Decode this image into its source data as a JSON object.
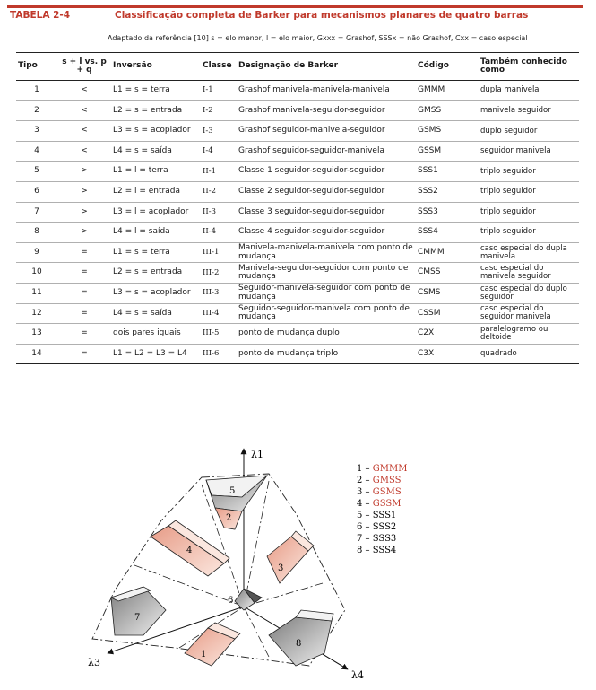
{
  "table": {
    "number": "TABELA 2-4",
    "title": "Classificação completa de Barker para mecanismos planares de quatro barras",
    "subtitle": "Adaptado da referência [10] s = elo menor, l = elo maior, Gxxx = Grashof, SSSx = não Grashof, Cxx = caso especial",
    "headers": [
      "Tipo",
      "s + l vs. p + q",
      "Inversão",
      "Classe",
      "Designação de Barker",
      "Código",
      "Também conhecido como"
    ],
    "rows": [
      {
        "tipo": "1",
        "comp": "<",
        "inv": "L1 = s = terra",
        "classe": "I-1",
        "desig": "Grashof manivela-manivela-manivela",
        "codigo": "GMMM",
        "alias": "dupla manivela"
      },
      {
        "tipo": "2",
        "comp": "<",
        "inv": "L2 = s = entrada",
        "classe": "I-2",
        "desig": "Grashof manivela-seguidor-seguidor",
        "codigo": "GMSS",
        "alias": "manivela seguidor"
      },
      {
        "tipo": "3",
        "comp": "<",
        "inv": "L3 = s = acoplador",
        "classe": "I-3",
        "desig": "Grashof seguidor-manivela-seguidor",
        "codigo": "GSMS",
        "alias": "duplo seguidor"
      },
      {
        "tipo": "4",
        "comp": "<",
        "inv": "L4 = s = saída",
        "classe": "I-4",
        "desig": "Grashof seguidor-seguidor-manivela",
        "codigo": "GSSM",
        "alias": "seguidor manivela"
      },
      {
        "tipo": "5",
        "comp": ">",
        "inv": "L1 = l = terra",
        "classe": "II-1",
        "desig": "Classe 1 seguidor-seguidor-seguidor",
        "codigo": "SSS1",
        "alias": "triplo seguidor"
      },
      {
        "tipo": "6",
        "comp": ">",
        "inv": "L2 = l = entrada",
        "classe": "II-2",
        "desig": "Classe 2 seguidor-seguidor-seguidor",
        "codigo": "SSS2",
        "alias": "triplo seguidor"
      },
      {
        "tipo": "7",
        "comp": ">",
        "inv": "L3 = l = acoplador",
        "classe": "II-3",
        "desig": "Classe 3 seguidor-seguidor-seguidor",
        "codigo": "SSS3",
        "alias": "triplo seguidor"
      },
      {
        "tipo": "8",
        "comp": ">",
        "inv": "L4 = l = saída",
        "classe": "II-4",
        "desig": "Classe 4 seguidor-seguidor-seguidor",
        "codigo": "SSS4",
        "alias": "triplo seguidor"
      },
      {
        "tipo": "9",
        "comp": "=",
        "inv": "L1 = s = terra",
        "classe": "III-1",
        "desig": "Manivela-manivela-manivela com ponto de mudança",
        "codigo": "CMMM",
        "alias": "caso especial do dupla manivela"
      },
      {
        "tipo": "10",
        "comp": "=",
        "inv": "L2 = s = entrada",
        "classe": "III-2",
        "desig": "Manivela-seguidor-seguidor com ponto de mudança",
        "codigo": "CMSS",
        "alias": "caso especial do manivela seguidor"
      },
      {
        "tipo": "11",
        "comp": "=",
        "inv": "L3 = s = acoplador",
        "classe": "III-3",
        "desig": "Seguidor-manivela-seguidor com ponto de mudança",
        "codigo": "CSMS",
        "alias": "caso especial do duplo seguidor"
      },
      {
        "tipo": "12",
        "comp": "=",
        "inv": "L4 = s = saída",
        "classe": "III-4",
        "desig": "Seguidor-seguidor-manivela com ponto de mudança",
        "codigo": "CSSM",
        "alias": "caso especial do seguidor manivela"
      },
      {
        "tipo": "13",
        "comp": "=",
        "inv": "dois pares iguais",
        "classe": "III-5",
        "desig": "ponto de mudança duplo",
        "codigo": "C2X",
        "alias": "paralelogramo ou deltoide"
      },
      {
        "tipo": "14",
        "comp": "=",
        "inv": "L1 = L2 = L3 = L4",
        "classe": "III-6",
        "desig": "ponto de mudança triplo",
        "codigo": "C3X",
        "alias": "quadrado"
      }
    ]
  },
  "figure": {
    "axes": [
      "λ1",
      "λ3",
      "λ4"
    ],
    "region_labels": [
      "1",
      "2",
      "3",
      "4",
      "5",
      "6",
      "7",
      "8"
    ],
    "legend": [
      {
        "num": "1",
        "code": "GMMM",
        "color": "#c0392b"
      },
      {
        "num": "2",
        "code": "GMSS",
        "color": "#c0392b"
      },
      {
        "num": "3",
        "code": "GSMS",
        "color": "#c0392b"
      },
      {
        "num": "4",
        "code": "GSSM",
        "color": "#c0392b"
      },
      {
        "num": "5",
        "code": "SSS1",
        "color": "#1a1a1a"
      },
      {
        "num": "6",
        "code": "SSS2",
        "color": "#1a1a1a"
      },
      {
        "num": "7",
        "code": "SSS3",
        "color": "#1a1a1a"
      },
      {
        "num": "8",
        "code": "SSS4",
        "color": "#1a1a1a"
      }
    ]
  }
}
